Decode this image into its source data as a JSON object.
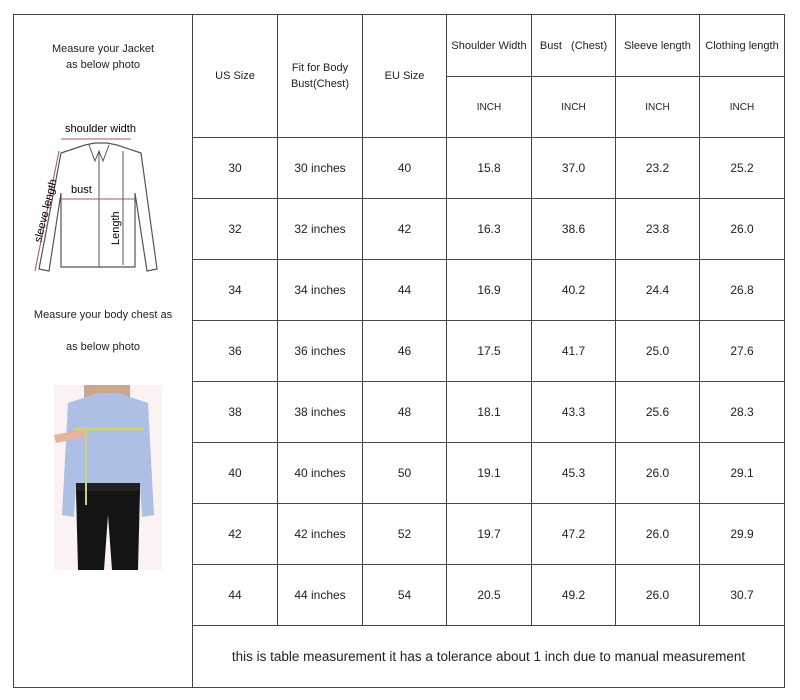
{
  "left_panel": {
    "jacket_title_1": "Measure your Jacket",
    "jacket_title_2": "as below photo",
    "diagram_labels": {
      "shoulder": "shoulder width",
      "bust": "bust",
      "length": "Length",
      "sleeve": "sleeve length"
    },
    "body_title_1": "Measure your body chest as",
    "body_title_2": "as below  photo"
  },
  "table": {
    "headers": [
      "US Size",
      "Fit for Body Bust(Chest)",
      "EU Size",
      "Shoulder Width",
      "Bust   (Chest)",
      "Sleeve length",
      "Clothing length"
    ],
    "unit": "INCH",
    "rows": [
      [
        "30",
        "30 inches",
        "40",
        "15.8",
        "37.0",
        "23.2",
        "25.2"
      ],
      [
        "32",
        "32 inches",
        "42",
        "16.3",
        "38.6",
        "23.8",
        "26.0"
      ],
      [
        "34",
        "34 inches",
        "44",
        "16.9",
        "40.2",
        "24.4",
        "26.8"
      ],
      [
        "36",
        "36 inches",
        "46",
        "17.5",
        "41.7",
        "25.0",
        "27.6"
      ],
      [
        "38",
        "38 inches",
        "48",
        "18.1",
        "43.3",
        "25.6",
        "28.3"
      ],
      [
        "40",
        "40 inches",
        "50",
        "19.1",
        "45.3",
        "26.0",
        "29.1"
      ],
      [
        "42",
        "42 inches",
        "52",
        "19.7",
        "47.2",
        "26.0",
        "29.9"
      ],
      [
        "44",
        "44 inches",
        "54",
        "20.5",
        "49.2",
        "26.0",
        "30.7"
      ]
    ],
    "footer": "this is table measurement it has a tolerance about 1 inch due to manual measurement"
  }
}
